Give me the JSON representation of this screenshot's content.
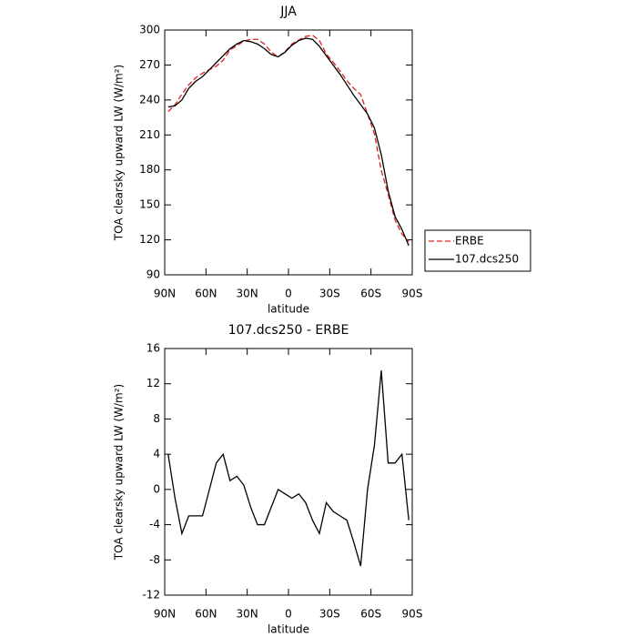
{
  "chart_data": [
    {
      "type": "line",
      "title": "JJA",
      "xlabel": "latitude",
      "ylabel": "TOA clearsky upward LW (W/m²)",
      "x": [
        87.5,
        82.5,
        77.5,
        72.5,
        67.5,
        62.5,
        57.5,
        52.5,
        47.5,
        42.5,
        37.5,
        32.5,
        27.5,
        22.5,
        17.5,
        12.5,
        7.5,
        2.5,
        -2.5,
        -7.5,
        -12.5,
        -17.5,
        -22.5,
        -27.5,
        -32.5,
        -37.5,
        -42.5,
        -47.5,
        -52.5,
        -57.5,
        -62.5,
        -67.5,
        -72.5,
        -77.5,
        -82.5,
        -87.5
      ],
      "xlim": [
        90,
        -90
      ],
      "xticks": [
        {
          "value": 90,
          "label": "90N"
        },
        {
          "value": 60,
          "label": "60N"
        },
        {
          "value": 30,
          "label": "30N"
        },
        0,
        {
          "value": -30,
          "label": "30S"
        },
        {
          "value": -60,
          "label": "60S"
        },
        {
          "value": -90,
          "label": "90S"
        }
      ],
      "ylim": [
        90,
        300
      ],
      "yticks": [
        90,
        120,
        150,
        180,
        210,
        240,
        270,
        300
      ],
      "legend": "right",
      "series": [
        {
          "name": "ERBE",
          "color": "#e0201e",
          "dash": true,
          "values": [
            230,
            236,
            245,
            253,
            259,
            263,
            266,
            269,
            274,
            283,
            286.5,
            290.5,
            292,
            292,
            288,
            281,
            277,
            281.5,
            288,
            291.5,
            294.5,
            295.5,
            291,
            279.5,
            272.5,
            265,
            256.5,
            250,
            244.7,
            228,
            211,
            179.5,
            159,
            137,
            125,
            118.5
          ]
        },
        {
          "name": "107.dcs250",
          "color": "#000000",
          "dash": false,
          "values": [
            234,
            235,
            240,
            250,
            256,
            260,
            266,
            272,
            278,
            284,
            288,
            291,
            290,
            288,
            284,
            279,
            277,
            281,
            287,
            291,
            293,
            292,
            286,
            278,
            270,
            262,
            253,
            244,
            236,
            228,
            216,
            193,
            162,
            140,
            129,
            115
          ]
        }
      ]
    },
    {
      "type": "line",
      "title": "107.dcs250 - ERBE",
      "xlabel": "latitude",
      "ylabel": "TOA clearsky upward LW (W/m²)",
      "x": [
        87.5,
        82.5,
        77.5,
        72.5,
        67.5,
        62.5,
        57.5,
        52.5,
        47.5,
        42.5,
        37.5,
        32.5,
        27.5,
        22.5,
        17.5,
        12.5,
        7.5,
        2.5,
        -2.5,
        -7.5,
        -12.5,
        -17.5,
        -22.5,
        -27.5,
        -32.5,
        -37.5,
        -42.5,
        -47.5,
        -52.5,
        -57.5,
        -62.5,
        -67.5,
        -72.5,
        -77.5,
        -82.5,
        -87.5
      ],
      "xlim": [
        90,
        -90
      ],
      "xticks": [
        {
          "value": 90,
          "label": "90N"
        },
        {
          "value": 60,
          "label": "60N"
        },
        {
          "value": 30,
          "label": "30N"
        },
        0,
        {
          "value": -30,
          "label": "30S"
        },
        {
          "value": -60,
          "label": "60S"
        },
        {
          "value": -90,
          "label": "90S"
        }
      ],
      "ylim": [
        -12,
        16
      ],
      "yticks": [
        -12,
        -8,
        -4,
        0,
        4,
        8,
        12,
        16
      ],
      "color": "#000000",
      "values": [
        4,
        -1,
        -5,
        -3,
        -3,
        -3,
        0,
        3,
        4,
        1,
        1.5,
        0.5,
        -2,
        -4,
        -4,
        -2,
        0,
        -0.5,
        -1,
        -0.5,
        -1.5,
        -3.5,
        -5,
        -1.5,
        -2.5,
        -3,
        -3.5,
        -6,
        -8.7,
        0,
        5,
        13.5,
        3,
        3,
        4,
        -3.5
      ]
    }
  ]
}
